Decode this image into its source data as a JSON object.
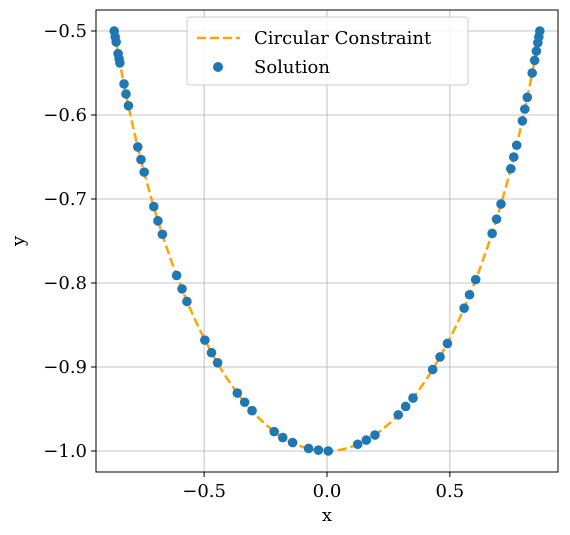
{
  "chart_data": {
    "type": "scatter",
    "xlabel": "x",
    "ylabel": "y",
    "xlim": [
      -0.94,
      0.94
    ],
    "ylim": [
      -1.025,
      -0.475
    ],
    "grid": true,
    "legend_position": "top-center",
    "xticks": [
      -0.5,
      0.0,
      0.5
    ],
    "xtick_labels": [
      "−0.5",
      "0.0",
      "0.5"
    ],
    "yticks": [
      -0.5,
      -0.6,
      -0.7,
      -0.8,
      -0.9,
      -1.0
    ],
    "ytick_labels": [
      "−0.5",
      "−0.6",
      "−0.7",
      "−0.8",
      "−0.9",
      "−1.0"
    ],
    "series": [
      {
        "name": "Circular Constraint",
        "kind": "line",
        "style": "dashed",
        "color": "#ffa500",
        "x_range": [
          -0.866,
          0.866
        ],
        "equation": "y = -sqrt(1 - x^2)"
      },
      {
        "name": "Solution",
        "kind": "scatter",
        "color": "#1f77b4",
        "x": [
          -0.866,
          -0.862,
          -0.858,
          -0.85,
          -0.846,
          -0.843,
          -0.826,
          -0.818,
          -0.808,
          -0.77,
          -0.757,
          -0.744,
          -0.705,
          -0.688,
          -0.67,
          -0.612,
          -0.59,
          -0.57,
          -0.497,
          -0.47,
          -0.445,
          -0.365,
          -0.335,
          -0.305,
          -0.215,
          -0.18,
          -0.14,
          -0.075,
          -0.035,
          0.005,
          0.125,
          0.16,
          0.195,
          0.29,
          0.32,
          0.35,
          0.43,
          0.46,
          0.49,
          0.558,
          0.58,
          0.605,
          0.672,
          0.69,
          0.708,
          0.748,
          0.76,
          0.772,
          0.795,
          0.805,
          0.815,
          0.835,
          0.845,
          0.852,
          0.858,
          0.862,
          0.866
        ],
        "y": [
          -0.5,
          -0.507,
          -0.513,
          -0.527,
          -0.533,
          -0.538,
          -0.563,
          -0.575,
          -0.589,
          -0.638,
          -0.653,
          -0.668,
          -0.709,
          -0.726,
          -0.742,
          -0.791,
          -0.807,
          -0.822,
          -0.868,
          -0.883,
          -0.895,
          -0.931,
          -0.942,
          -0.952,
          -0.977,
          -0.984,
          -0.99,
          -0.997,
          -0.999,
          -1.0,
          -0.992,
          -0.987,
          -0.981,
          -0.957,
          -0.947,
          -0.937,
          -0.903,
          -0.888,
          -0.872,
          -0.83,
          -0.814,
          -0.796,
          -0.741,
          -0.724,
          -0.706,
          -0.664,
          -0.65,
          -0.636,
          -0.607,
          -0.593,
          -0.579,
          -0.55,
          -0.535,
          -0.524,
          -0.514,
          -0.507,
          -0.5
        ]
      }
    ]
  }
}
